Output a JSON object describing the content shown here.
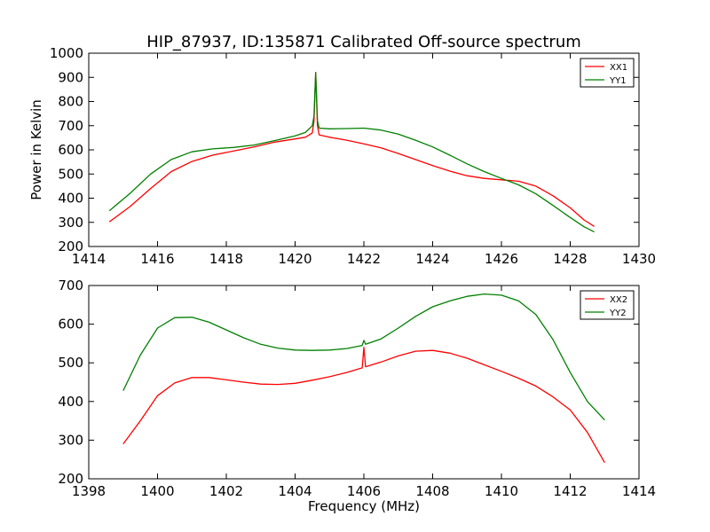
{
  "chart_data": [
    {
      "type": "line",
      "title": "HIP_87937, ID:135871 Calibrated Off-source spectrum",
      "xlabel": "",
      "ylabel": "Power in Kelvin",
      "xlim": [
        1414,
        1430
      ],
      "ylim": [
        200,
        1000
      ],
      "xticks": [
        1414,
        1416,
        1418,
        1420,
        1422,
        1424,
        1426,
        1428,
        1430
      ],
      "yticks": [
        200,
        300,
        400,
        500,
        600,
        700,
        800,
        900,
        1000
      ],
      "legend_position": "top-right",
      "grid": false,
      "series": [
        {
          "name": "XX1",
          "color": "#ff0000",
          "points": [
            [
              1414.6,
              302
            ],
            [
              1415.2,
              365
            ],
            [
              1415.8,
              440
            ],
            [
              1416.4,
              510
            ],
            [
              1417.0,
              552
            ],
            [
              1417.6,
              578
            ],
            [
              1418.2,
              595
            ],
            [
              1418.8,
              612
            ],
            [
              1419.4,
              632
            ],
            [
              1420.0,
              645
            ],
            [
              1420.3,
              652
            ],
            [
              1420.5,
              670
            ],
            [
              1420.55,
              720
            ],
            [
              1420.6,
              920
            ],
            [
              1420.65,
              700
            ],
            [
              1420.7,
              662
            ],
            [
              1421.0,
              652
            ],
            [
              1421.5,
              640
            ],
            [
              1422.0,
              625
            ],
            [
              1422.5,
              608
            ],
            [
              1423.0,
              585
            ],
            [
              1423.5,
              560
            ],
            [
              1424.0,
              535
            ],
            [
              1424.5,
              512
            ],
            [
              1425.0,
              493
            ],
            [
              1425.5,
              482
            ],
            [
              1426.0,
              476
            ],
            [
              1426.5,
              470
            ],
            [
              1427.0,
              450
            ],
            [
              1427.5,
              410
            ],
            [
              1428.0,
              360
            ],
            [
              1428.4,
              310
            ],
            [
              1428.7,
              283
            ]
          ]
        },
        {
          "name": "YY1",
          "color": "#008000",
          "points": [
            [
              1414.6,
              348
            ],
            [
              1415.2,
              420
            ],
            [
              1415.8,
              500
            ],
            [
              1416.4,
              560
            ],
            [
              1417.0,
              592
            ],
            [
              1417.6,
              604
            ],
            [
              1418.2,
              610
            ],
            [
              1418.8,
              620
            ],
            [
              1419.4,
              638
            ],
            [
              1420.0,
              658
            ],
            [
              1420.3,
              672
            ],
            [
              1420.5,
              700
            ],
            [
              1420.55,
              740
            ],
            [
              1420.6,
              920
            ],
            [
              1420.65,
              720
            ],
            [
              1420.7,
              690
            ],
            [
              1421.0,
              687
            ],
            [
              1421.5,
              688
            ],
            [
              1422.0,
              690
            ],
            [
              1422.5,
              682
            ],
            [
              1423.0,
              665
            ],
            [
              1423.5,
              640
            ],
            [
              1424.0,
              612
            ],
            [
              1424.5,
              578
            ],
            [
              1425.0,
              542
            ],
            [
              1425.5,
              510
            ],
            [
              1426.0,
              482
            ],
            [
              1426.5,
              455
            ],
            [
              1427.0,
              418
            ],
            [
              1427.5,
              370
            ],
            [
              1428.0,
              320
            ],
            [
              1428.4,
              282
            ],
            [
              1428.7,
              260
            ]
          ]
        }
      ]
    },
    {
      "type": "line",
      "title": "",
      "xlabel": "Frequency (MHz)",
      "ylabel": "",
      "xlim": [
        1398,
        1414
      ],
      "ylim": [
        200,
        700
      ],
      "xticks": [
        1398,
        1400,
        1402,
        1404,
        1406,
        1408,
        1410,
        1412,
        1414
      ],
      "yticks": [
        200,
        300,
        400,
        500,
        600,
        700
      ],
      "legend_position": "top-right",
      "grid": false,
      "series": [
        {
          "name": "XX2",
          "color": "#ff0000",
          "points": [
            [
              1399.0,
              290
            ],
            [
              1399.5,
              350
            ],
            [
              1400.0,
              415
            ],
            [
              1400.5,
              448
            ],
            [
              1401.0,
              462
            ],
            [
              1401.5,
              462
            ],
            [
              1402.0,
              456
            ],
            [
              1402.5,
              450
            ],
            [
              1403.0,
              445
            ],
            [
              1403.5,
              444
            ],
            [
              1404.0,
              447
            ],
            [
              1404.5,
              455
            ],
            [
              1405.0,
              464
            ],
            [
              1405.5,
              475
            ],
            [
              1405.95,
              487
            ],
            [
              1406.0,
              540
            ],
            [
              1406.05,
              490
            ],
            [
              1406.5,
              502
            ],
            [
              1407.0,
              518
            ],
            [
              1407.5,
              530
            ],
            [
              1408.0,
              532
            ],
            [
              1408.5,
              525
            ],
            [
              1409.0,
              512
            ],
            [
              1409.5,
              495
            ],
            [
              1410.0,
              478
            ],
            [
              1410.5,
              460
            ],
            [
              1411.0,
              440
            ],
            [
              1411.5,
              412
            ],
            [
              1412.0,
              378
            ],
            [
              1412.5,
              320
            ],
            [
              1413.0,
              242
            ]
          ]
        },
        {
          "name": "YY2",
          "color": "#008000",
          "points": [
            [
              1399.0,
              428
            ],
            [
              1399.5,
              520
            ],
            [
              1400.0,
              590
            ],
            [
              1400.5,
              617
            ],
            [
              1401.0,
              618
            ],
            [
              1401.5,
              605
            ],
            [
              1402.0,
              585
            ],
            [
              1402.5,
              565
            ],
            [
              1403.0,
              548
            ],
            [
              1403.5,
              538
            ],
            [
              1404.0,
              533
            ],
            [
              1404.5,
              532
            ],
            [
              1405.0,
              533
            ],
            [
              1405.5,
              537
            ],
            [
              1405.95,
              545
            ],
            [
              1406.0,
              558
            ],
            [
              1406.05,
              548
            ],
            [
              1406.5,
              562
            ],
            [
              1407.0,
              590
            ],
            [
              1407.5,
              620
            ],
            [
              1408.0,
              645
            ],
            [
              1408.5,
              660
            ],
            [
              1409.0,
              672
            ],
            [
              1409.5,
              678
            ],
            [
              1410.0,
              675
            ],
            [
              1410.5,
              660
            ],
            [
              1411.0,
              625
            ],
            [
              1411.5,
              560
            ],
            [
              1412.0,
              475
            ],
            [
              1412.5,
              400
            ],
            [
              1413.0,
              352
            ]
          ]
        }
      ]
    }
  ]
}
